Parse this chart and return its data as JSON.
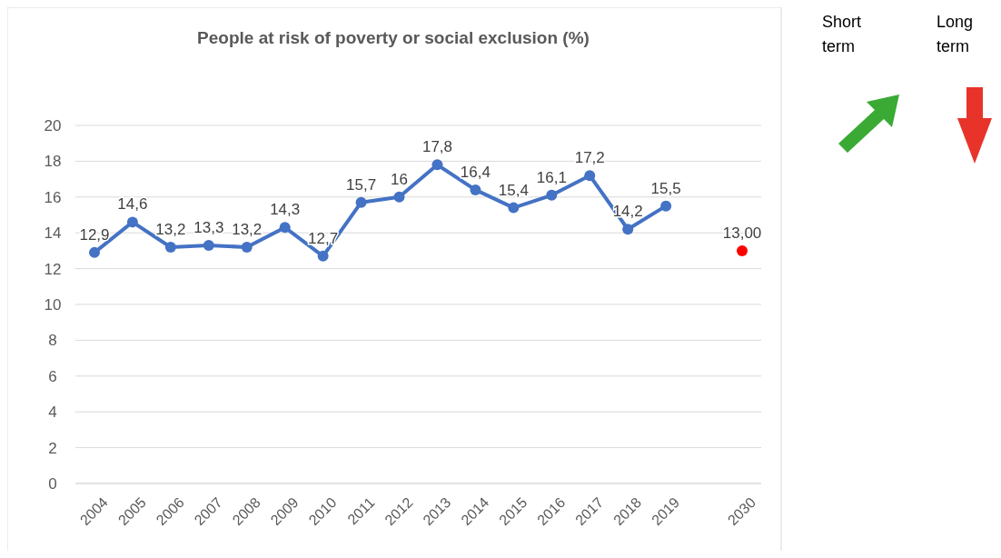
{
  "chart_data": {
    "type": "line",
    "title": "People at risk of poverty or social exclusion (%)",
    "categories": [
      "2004",
      "2005",
      "2006",
      "2007",
      "2008",
      "2009",
      "2010",
      "2011",
      "2012",
      "2013",
      "2014",
      "2015",
      "2016",
      "2017",
      "2018",
      "2019",
      null,
      "2030"
    ],
    "series": [
      {
        "color": "#4472c4",
        "values": [
          12.9,
          14.6,
          13.2,
          13.3,
          13.2,
          14.3,
          12.7,
          15.7,
          16,
          17.8,
          16.4,
          15.4,
          16.1,
          17.2,
          14.2,
          15.5,
          null,
          null
        ],
        "value_labels": [
          "12,9",
          "14,6",
          "13,2",
          "13,3",
          "13,2",
          "14,3",
          "12,7",
          "15,7",
          "16",
          "17,8",
          "16,4",
          "15,4",
          "16,1",
          "17,2",
          "14,2",
          "15,5",
          null,
          null
        ]
      },
      {
        "type": "scatter",
        "color": "#ff0000",
        "values": [
          null,
          null,
          null,
          null,
          null,
          null,
          null,
          null,
          null,
          null,
          null,
          null,
          null,
          null,
          null,
          null,
          null,
          13.0
        ],
        "value_labels": [
          null,
          null,
          null,
          null,
          null,
          null,
          null,
          null,
          null,
          null,
          null,
          null,
          null,
          null,
          null,
          null,
          null,
          "13,00"
        ]
      }
    ],
    "ylim": [
      0,
      20
    ],
    "yticks": [
      0,
      2,
      4,
      6,
      8,
      10,
      12,
      14,
      16,
      18,
      20
    ],
    "grid": "y",
    "marker": "circle",
    "line_style": "solid",
    "annotations": [
      "Short term",
      "Long term"
    ]
  }
}
